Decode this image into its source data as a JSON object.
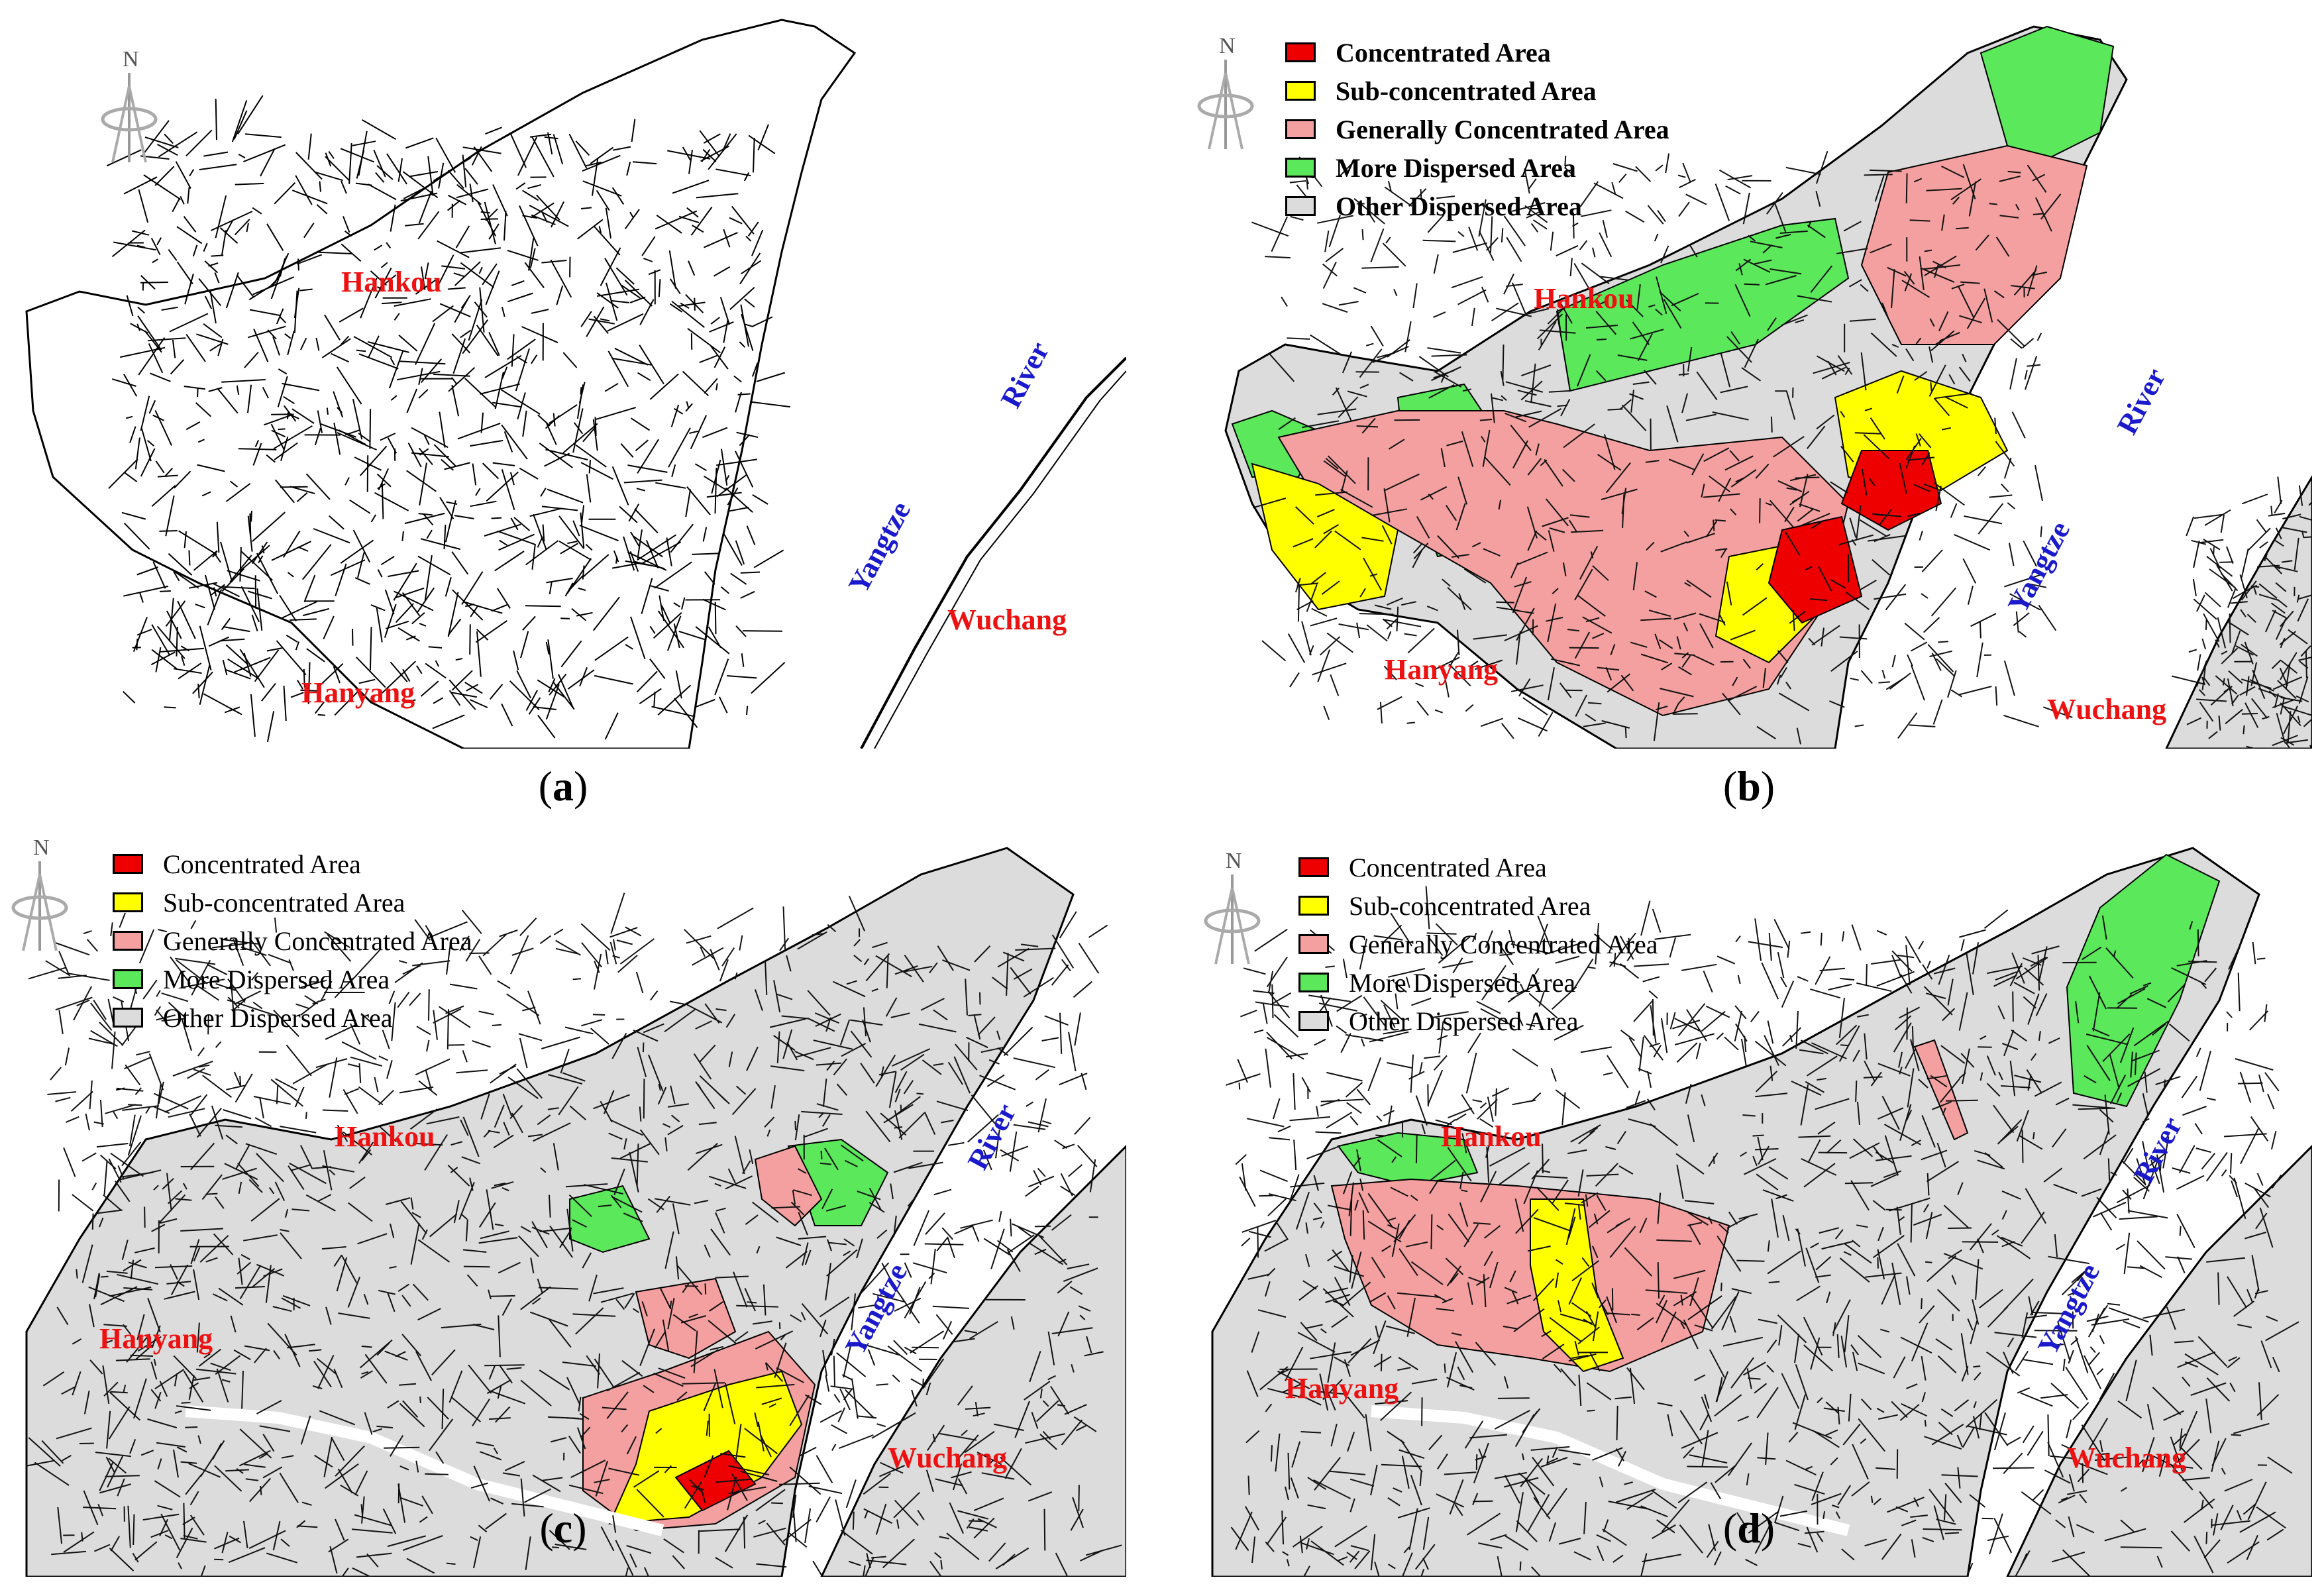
{
  "panels": [
    {
      "id": "a",
      "caption": "a",
      "has_legend": false,
      "places": {
        "hankou": "Hankou",
        "hanyang": "Hanyang",
        "wuchang": "Wuchang",
        "yangtze": "Yangtze",
        "river": "River"
      }
    },
    {
      "id": "b",
      "caption": "b",
      "has_legend": true,
      "places": {
        "hankou": "Hankou",
        "hanyang": "Hanyang",
        "wuchang": "Wuchang",
        "yangtze": "Yangtze",
        "river": "River"
      }
    },
    {
      "id": "c",
      "caption": "c",
      "has_legend": true,
      "places": {
        "hankou": "Hankou",
        "hanyang": "Hanyang",
        "wuchang": "Wuchang",
        "yangtze": "Yangtze",
        "river": "River"
      }
    },
    {
      "id": "d",
      "caption": "d",
      "has_legend": true,
      "places": {
        "hankou": "Hankou",
        "hanyang": "Hanyang",
        "wuchang": "Wuchang",
        "yangtze": "Yangtze",
        "river": "River"
      }
    }
  ],
  "north_label": "N",
  "legend": [
    {
      "label": "Concentrated Area",
      "color": "#ee0000"
    },
    {
      "label": "Sub-concentrated  Area",
      "color": "#ffff00"
    },
    {
      "label": "Generally Concentrated Area",
      "color": "#f4a0a0"
    },
    {
      "label": "More Dispersed Area",
      "color": "#5be85b"
    },
    {
      "label": "Other Dispersed  Area",
      "color": "#dcdcdc"
    }
  ],
  "colors": {
    "place_red": "#ee1111",
    "place_blue": "#1a1acc",
    "road": "#111111"
  }
}
